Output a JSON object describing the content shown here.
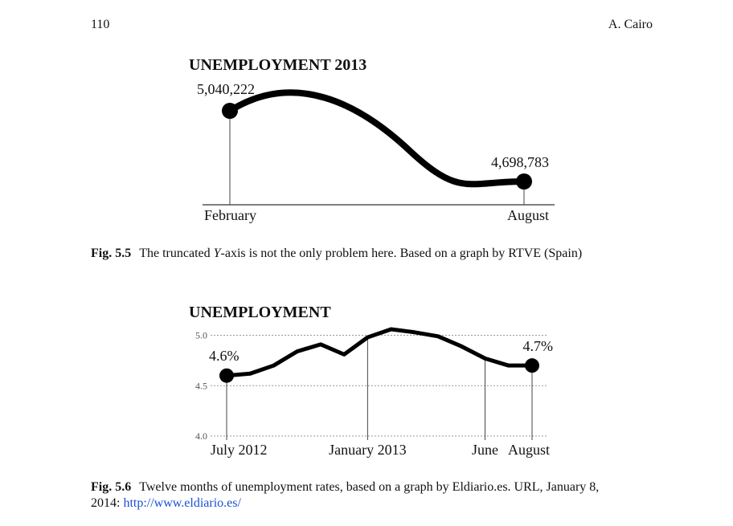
{
  "header": {
    "page_number": "110",
    "author": "A. Cairo"
  },
  "chart_data": [
    {
      "type": "line",
      "title": "UNEMPLOYMENT 2013",
      "categories": [
        "February",
        "August"
      ],
      "values": [
        5040222,
        4698783
      ],
      "value_labels": [
        "5,040,222",
        "4,698,783"
      ],
      "color": "#000000"
    },
    {
      "type": "line",
      "title": "UNEMPLOYMENT",
      "categories": [
        "July 2012",
        null,
        null,
        null,
        null,
        null,
        "January 2013",
        null,
        null,
        null,
        null,
        "June",
        null,
        "August"
      ],
      "values": [
        4.6,
        4.62,
        4.7,
        4.84,
        4.91,
        4.81,
        4.98,
        5.06,
        5.03,
        4.99,
        4.89,
        4.77,
        4.7,
        4.7
      ],
      "value_labels": [
        "4.6%",
        null,
        null,
        null,
        null,
        null,
        null,
        null,
        null,
        null,
        null,
        null,
        null,
        "4.7%"
      ],
      "color": "#000000",
      "ylim": [
        4.0,
        5.1
      ],
      "yticks": [
        {
          "value": 4.0,
          "label": "4.0"
        },
        {
          "value": 4.5,
          "label": "4.5"
        },
        {
          "value": 5.0,
          "label": "5.0"
        }
      ],
      "grid": true
    }
  ],
  "captions": [
    {
      "label": "Fig. 5.5",
      "text_before": "The truncated ",
      "italic": "Y",
      "text_after": "-axis is not the only problem here. Based on a graph by RTVE (Spain)"
    },
    {
      "label": "Fig. 5.6",
      "line1": "Twelve months of unemployment rates, based on a graph by Eldiario.es. URL, January 8,",
      "line2": "2014: ",
      "link": "http://www.eldiario.es/"
    }
  ]
}
